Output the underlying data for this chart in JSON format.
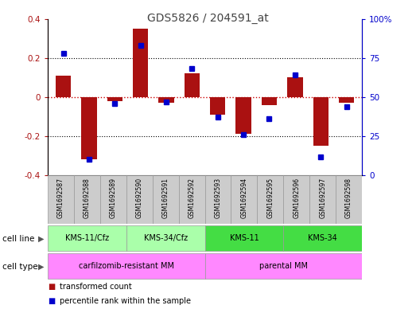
{
  "title": "GDS5826 / 204591_at",
  "samples": [
    "GSM1692587",
    "GSM1692588",
    "GSM1692589",
    "GSM1692590",
    "GSM1692591",
    "GSM1692592",
    "GSM1692593",
    "GSM1692594",
    "GSM1692595",
    "GSM1692596",
    "GSM1692597",
    "GSM1692598"
  ],
  "transformed_count": [
    0.11,
    -0.32,
    -0.02,
    0.35,
    -0.03,
    0.12,
    -0.09,
    -0.19,
    -0.04,
    0.1,
    -0.25,
    -0.03
  ],
  "percentile_rank": [
    78,
    10,
    46,
    83,
    47,
    68,
    37,
    26,
    36,
    64,
    12,
    44
  ],
  "bar_color": "#aa1111",
  "dot_color": "#0000cc",
  "zero_line_color": "#cc0000",
  "grid_color": "#000000",
  "ylim_left": [
    -0.4,
    0.4
  ],
  "ylim_right": [
    0,
    100
  ],
  "yticks_left": [
    -0.4,
    -0.2,
    0.0,
    0.2,
    0.4
  ],
  "yticks_right": [
    0,
    25,
    50,
    75,
    100
  ],
  "ytick_labels_right": [
    "0",
    "25",
    "50",
    "75",
    "100%"
  ],
  "cell_line_groups": [
    {
      "label": "KMS-11/Cfz",
      "start": 0,
      "end": 2,
      "color": "#aaffaa"
    },
    {
      "label": "KMS-34/Cfz",
      "start": 3,
      "end": 5,
      "color": "#aaffaa"
    },
    {
      "label": "KMS-11",
      "start": 6,
      "end": 8,
      "color": "#44dd44"
    },
    {
      "label": "KMS-34",
      "start": 9,
      "end": 11,
      "color": "#44dd44"
    }
  ],
  "cell_type_groups": [
    {
      "label": "carfilzomib-resistant MM",
      "start": 0,
      "end": 5,
      "color": "#ff88ff"
    },
    {
      "label": "parental MM",
      "start": 6,
      "end": 11,
      "color": "#ff88ff"
    }
  ],
  "legend_items": [
    {
      "label": "transformed count",
      "color": "#aa1111"
    },
    {
      "label": "percentile rank within the sample",
      "color": "#0000cc"
    }
  ],
  "sample_bg_color": "#cccccc",
  "sample_border_color": "#999999",
  "cell_line_label": "cell line",
  "cell_type_label": "cell type"
}
